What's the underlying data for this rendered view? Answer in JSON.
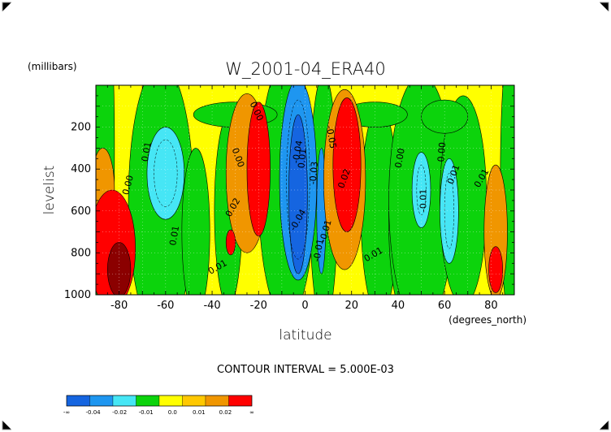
{
  "chart_data": {
    "type": "heatmap",
    "title": "W_2001-04_ERA40",
    "units_label": "(millibars)",
    "xlabel": "latitude",
    "x_units_label": "(degrees_north)",
    "ylabel": "levelist",
    "xlim": [
      -90,
      90
    ],
    "ylim": [
      0,
      1000
    ],
    "y_inverted": true,
    "x_ticks": [
      -80,
      -60,
      -40,
      -20,
      0,
      20,
      40,
      60,
      80
    ],
    "x_tick_labels": [
      "-80",
      "-60",
      "-40",
      "-20",
      "0",
      "20",
      "40",
      "60",
      "80"
    ],
    "y_ticks": [
      200,
      400,
      600,
      800,
      1000
    ],
    "y_tick_labels": [
      "200",
      "400",
      "600",
      "800",
      "1000"
    ],
    "contour_interval_text": "CONTOUR INTERVAL = 5.000E-03",
    "colorbar": {
      "colors": [
        "#1565e0",
        "#1e96f0",
        "#46e6f5",
        "#0cd30c",
        "#ffff00",
        "#ffc800",
        "#f09600",
        "#ff0000"
      ],
      "tick_labels": [
        "-∞",
        "-0.04",
        "-0.02",
        "-0.01",
        "0.0",
        "0.01",
        "0.02",
        "∞"
      ]
    },
    "contour_labels": [
      "0.00",
      "0.01",
      "0.02",
      "0.03",
      "-0.01",
      "-0.03",
      "-0.04",
      "-0.05"
    ],
    "anomaly_centers": [
      {
        "lat": -85,
        "lev": 750,
        "value": 0.04,
        "level": "strong positive"
      },
      {
        "lat": -60,
        "lev": 420,
        "value": -0.012,
        "level": "negative"
      },
      {
        "lat": -20,
        "lev": 400,
        "value": 0.027,
        "level": "positive"
      },
      {
        "lat": -3,
        "lev": 450,
        "value": -0.05,
        "level": "strong negative"
      },
      {
        "lat": 18,
        "lev": 380,
        "value": 0.035,
        "level": "positive"
      },
      {
        "lat": 50,
        "lev": 500,
        "value": -0.011,
        "level": "weak negative"
      },
      {
        "lat": 82,
        "lev": 850,
        "value": 0.021,
        "level": "positive"
      }
    ]
  }
}
